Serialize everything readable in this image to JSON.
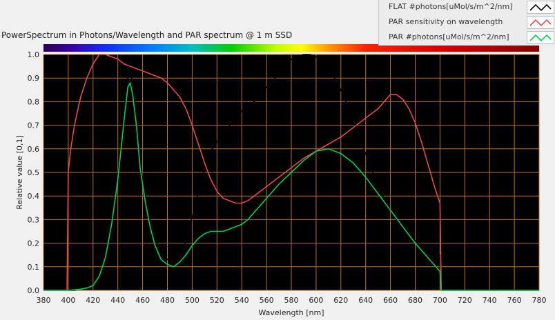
{
  "chart_data": {
    "type": "line",
    "title": "PowerSpectrum in Photons/Wavelength and PAR spectrum @ 1 m SSD",
    "xlabel": "Wavelength [nm]",
    "ylabel": "Relative value [0,1]",
    "xlim": [
      380,
      780
    ],
    "ylim": [
      0,
      1.0
    ],
    "x_ticks": [
      "380",
      "400",
      "420",
      "440",
      "460",
      "480",
      "500",
      "520",
      "540",
      "560",
      "580",
      "600",
      "620",
      "640",
      "660",
      "680",
      "700",
      "720",
      "740",
      "760",
      "780"
    ],
    "y_ticks": [
      "0.0",
      "0.1",
      "0.2",
      "0.3",
      "0.4",
      "0.5",
      "0.6",
      "0.7",
      "0.8",
      "0.9",
      "1.0"
    ],
    "grid": true,
    "grid_color": "#b8742a",
    "plot_background": "#000000",
    "legend_position": "top-right",
    "series": [
      {
        "name": "FLAT #photons[uMol/s/m^2/nm]",
        "color": "#000000",
        "points": [
          [
            380,
            0
          ],
          [
            405,
            0
          ],
          [
            410,
            0.005
          ],
          [
            415,
            0.01
          ],
          [
            420,
            0.02
          ],
          [
            425,
            0.06
          ],
          [
            430,
            0.14
          ],
          [
            435,
            0.28
          ],
          [
            440,
            0.48
          ],
          [
            445,
            0.74
          ],
          [
            448,
            0.9
          ],
          [
            450,
            0.93
          ],
          [
            452,
            0.88
          ],
          [
            455,
            0.74
          ],
          [
            458,
            0.55
          ],
          [
            462,
            0.4
          ],
          [
            466,
            0.3
          ],
          [
            470,
            0.22
          ],
          [
            475,
            0.16
          ],
          [
            480,
            0.13
          ],
          [
            485,
            0.13
          ],
          [
            490,
            0.15
          ],
          [
            495,
            0.21
          ],
          [
            500,
            0.31
          ],
          [
            505,
            0.42
          ],
          [
            510,
            0.52
          ],
          [
            515,
            0.59
          ],
          [
            520,
            0.63
          ],
          [
            525,
            0.67
          ],
          [
            530,
            0.7
          ],
          [
            535,
            0.73
          ],
          [
            540,
            0.76
          ],
          [
            545,
            0.78
          ],
          [
            550,
            0.8
          ],
          [
            555,
            0.83
          ],
          [
            560,
            0.86
          ],
          [
            565,
            0.89
          ],
          [
            570,
            0.92
          ],
          [
            575,
            0.95
          ],
          [
            580,
            0.98
          ],
          [
            585,
            0.99
          ],
          [
            590,
            1.0
          ],
          [
            595,
            1.0
          ],
          [
            600,
            0.99
          ],
          [
            605,
            0.97
          ],
          [
            610,
            0.94
          ],
          [
            615,
            0.9
          ],
          [
            620,
            0.85
          ],
          [
            625,
            0.79
          ],
          [
            630,
            0.72
          ],
          [
            635,
            0.65
          ],
          [
            640,
            0.58
          ],
          [
            645,
            0.51
          ],
          [
            650,
            0.45
          ],
          [
            655,
            0.39
          ],
          [
            660,
            0.34
          ],
          [
            665,
            0.3
          ],
          [
            670,
            0.26
          ],
          [
            675,
            0.23
          ],
          [
            680,
            0.21
          ],
          [
            685,
            0.19
          ],
          [
            690,
            0.17
          ],
          [
            695,
            0.16
          ],
          [
            700,
            0.15
          ],
          [
            701,
            0.0
          ],
          [
            780,
            0
          ]
        ]
      },
      {
        "name": "PAR sensitivity on wavelength",
        "color": "#e84a4a",
        "points": [
          [
            380,
            0
          ],
          [
            399,
            0
          ],
          [
            400,
            0.5
          ],
          [
            402,
            0.6
          ],
          [
            405,
            0.7
          ],
          [
            410,
            0.82
          ],
          [
            415,
            0.9
          ],
          [
            420,
            0.96
          ],
          [
            425,
            1.0
          ],
          [
            430,
            1.0
          ],
          [
            435,
            0.99
          ],
          [
            440,
            0.98
          ],
          [
            445,
            0.96
          ],
          [
            450,
            0.95
          ],
          [
            455,
            0.94
          ],
          [
            460,
            0.93
          ],
          [
            465,
            0.92
          ],
          [
            470,
            0.91
          ],
          [
            475,
            0.9
          ],
          [
            480,
            0.88
          ],
          [
            485,
            0.85
          ],
          [
            490,
            0.82
          ],
          [
            495,
            0.77
          ],
          [
            500,
            0.7
          ],
          [
            505,
            0.62
          ],
          [
            510,
            0.54
          ],
          [
            515,
            0.47
          ],
          [
            520,
            0.42
          ],
          [
            525,
            0.39
          ],
          [
            530,
            0.38
          ],
          [
            535,
            0.37
          ],
          [
            540,
            0.37
          ],
          [
            545,
            0.38
          ],
          [
            550,
            0.4
          ],
          [
            560,
            0.44
          ],
          [
            570,
            0.48
          ],
          [
            580,
            0.52
          ],
          [
            590,
            0.56
          ],
          [
            600,
            0.59
          ],
          [
            610,
            0.62
          ],
          [
            620,
            0.65
          ],
          [
            630,
            0.69
          ],
          [
            640,
            0.73
          ],
          [
            650,
            0.77
          ],
          [
            655,
            0.8
          ],
          [
            660,
            0.83
          ],
          [
            665,
            0.83
          ],
          [
            670,
            0.81
          ],
          [
            675,
            0.77
          ],
          [
            680,
            0.71
          ],
          [
            685,
            0.63
          ],
          [
            690,
            0.54
          ],
          [
            695,
            0.45
          ],
          [
            698,
            0.4
          ],
          [
            700,
            0.37
          ],
          [
            701,
            0.0
          ],
          [
            780,
            0
          ]
        ]
      },
      {
        "name": "PAR #photons[uMol/s/m^2/nm]",
        "color": "#00d050",
        "points": [
          [
            380,
            0
          ],
          [
            399,
            0
          ],
          [
            400,
            0.0
          ],
          [
            410,
            0.005
          ],
          [
            415,
            0.01
          ],
          [
            420,
            0.02
          ],
          [
            425,
            0.06
          ],
          [
            430,
            0.14
          ],
          [
            435,
            0.28
          ],
          [
            440,
            0.47
          ],
          [
            445,
            0.72
          ],
          [
            448,
            0.86
          ],
          [
            450,
            0.88
          ],
          [
            452,
            0.83
          ],
          [
            455,
            0.7
          ],
          [
            458,
            0.52
          ],
          [
            462,
            0.38
          ],
          [
            466,
            0.27
          ],
          [
            470,
            0.19
          ],
          [
            475,
            0.13
          ],
          [
            480,
            0.11
          ],
          [
            485,
            0.1
          ],
          [
            490,
            0.12
          ],
          [
            495,
            0.15
          ],
          [
            500,
            0.19
          ],
          [
            505,
            0.22
          ],
          [
            510,
            0.24
          ],
          [
            515,
            0.25
          ],
          [
            520,
            0.25
          ],
          [
            525,
            0.25
          ],
          [
            530,
            0.26
          ],
          [
            535,
            0.27
          ],
          [
            540,
            0.28
          ],
          [
            545,
            0.3
          ],
          [
            550,
            0.33
          ],
          [
            560,
            0.39
          ],
          [
            570,
            0.45
          ],
          [
            580,
            0.5
          ],
          [
            590,
            0.55
          ],
          [
            600,
            0.59
          ],
          [
            610,
            0.6
          ],
          [
            620,
            0.58
          ],
          [
            630,
            0.54
          ],
          [
            640,
            0.48
          ],
          [
            650,
            0.41
          ],
          [
            660,
            0.34
          ],
          [
            670,
            0.27
          ],
          [
            680,
            0.2
          ],
          [
            690,
            0.14
          ],
          [
            700,
            0.08
          ],
          [
            701,
            0.0
          ],
          [
            780,
            0
          ]
        ]
      }
    ]
  },
  "legend": {
    "items": [
      {
        "label": "FLAT #photons[uMol/s/m^2/nm]",
        "color": "#000000"
      },
      {
        "label": "PAR sensitivity on wavelength",
        "color": "#e84a4a"
      },
      {
        "label": "PAR #photons[uMol/s/m^2/nm]",
        "color": "#00d050"
      }
    ]
  }
}
